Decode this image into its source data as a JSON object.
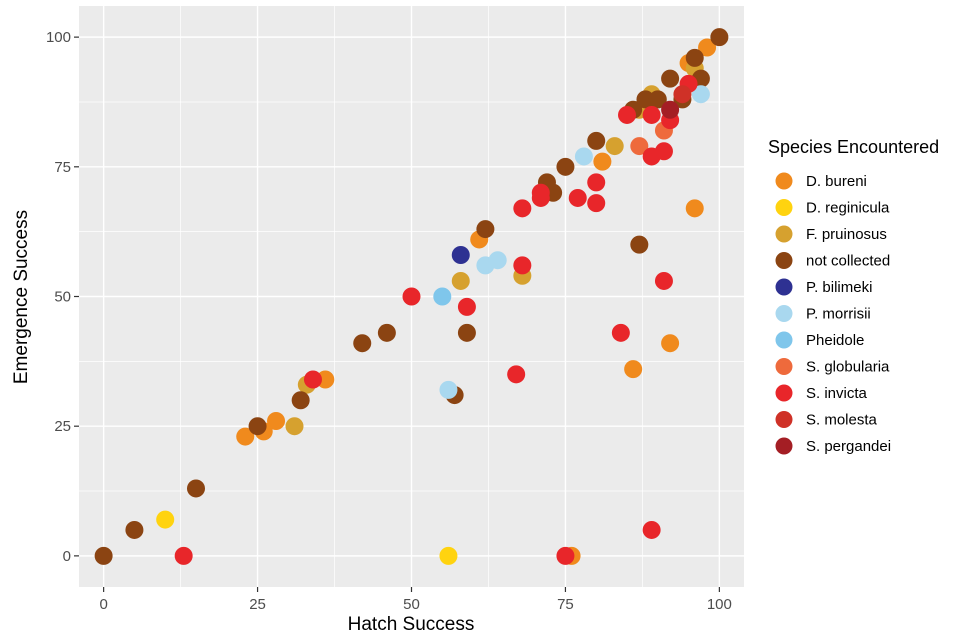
{
  "chart_data": {
    "type": "scatter",
    "xlabel": "Hatch Success",
    "ylabel": "Emergence Success",
    "xlim": [
      -4,
      104
    ],
    "ylim": [
      -6,
      106
    ],
    "xticks": [
      0,
      25,
      50,
      75,
      100
    ],
    "yticks": [
      0,
      25,
      50,
      75,
      100
    ],
    "grid": true,
    "legend_title": "Species Encountered",
    "legend_position": "right",
    "series": [
      {
        "name": "D. bureni",
        "color": "#F08A1D",
        "points": [
          [
            23,
            23
          ],
          [
            26,
            24
          ],
          [
            28,
            26
          ],
          [
            36,
            34
          ],
          [
            61,
            61
          ],
          [
            81,
            76
          ],
          [
            86,
            36
          ],
          [
            92,
            41
          ],
          [
            95,
            95
          ],
          [
            96,
            67
          ],
          [
            98,
            98
          ],
          [
            76,
            0
          ]
        ]
      },
      {
        "name": "D. reginicula",
        "color": "#FFD30F",
        "points": [
          [
            10,
            7
          ],
          [
            56,
            0
          ]
        ]
      },
      {
        "name": "F. pruinosus",
        "color": "#D6A12F",
        "points": [
          [
            31,
            25
          ],
          [
            33,
            33
          ],
          [
            58,
            53
          ],
          [
            68,
            54
          ],
          [
            83,
            79
          ],
          [
            87,
            86
          ],
          [
            89,
            89
          ],
          [
            96,
            94
          ]
        ]
      },
      {
        "name": "not collected",
        "color": "#8B4412",
        "points": [
          [
            0,
            0
          ],
          [
            5,
            5
          ],
          [
            15,
            13
          ],
          [
            25,
            25
          ],
          [
            32,
            30
          ],
          [
            42,
            41
          ],
          [
            46,
            43
          ],
          [
            57,
            31
          ],
          [
            59,
            43
          ],
          [
            62,
            63
          ],
          [
            72,
            72
          ],
          [
            73,
            70
          ],
          [
            75,
            75
          ],
          [
            80,
            80
          ],
          [
            86,
            86
          ],
          [
            87,
            60
          ],
          [
            88,
            88
          ],
          [
            90,
            88
          ],
          [
            92,
            92
          ],
          [
            94,
            88
          ],
          [
            96,
            96
          ],
          [
            97,
            92
          ],
          [
            100,
            100
          ]
        ]
      },
      {
        "name": "P. bilimeki",
        "color": "#2E3192",
        "points": [
          [
            58,
            58
          ]
        ]
      },
      {
        "name": "P. morrisii",
        "color": "#A9D8EF",
        "points": [
          [
            56,
            32
          ],
          [
            62,
            56
          ],
          [
            64,
            57
          ],
          [
            78,
            77
          ],
          [
            97,
            89
          ]
        ]
      },
      {
        "name": "Pheidole",
        "color": "#7FC6EB",
        "points": [
          [
            55,
            50
          ]
        ]
      },
      {
        "name": "S. globularia",
        "color": "#EE6A3C",
        "points": [
          [
            87,
            79
          ],
          [
            91,
            82
          ]
        ]
      },
      {
        "name": "S. invicta",
        "color": "#E8262A",
        "points": [
          [
            13,
            0
          ],
          [
            34,
            34
          ],
          [
            50,
            50
          ],
          [
            59,
            48
          ],
          [
            67,
            35
          ],
          [
            68,
            56
          ],
          [
            68,
            67
          ],
          [
            71,
            69
          ],
          [
            71,
            70
          ],
          [
            77,
            69
          ],
          [
            80,
            68
          ],
          [
            80,
            72
          ],
          [
            84,
            43
          ],
          [
            85,
            85
          ],
          [
            89,
            77
          ],
          [
            89,
            85
          ],
          [
            91,
            53
          ],
          [
            91,
            78
          ],
          [
            92,
            84
          ],
          [
            95,
            91
          ],
          [
            89,
            5
          ],
          [
            75,
            0
          ]
        ]
      },
      {
        "name": "S. molesta",
        "color": "#CF3127",
        "points": [
          [
            94,
            89
          ]
        ]
      },
      {
        "name": "S. pergandei",
        "color": "#A41E24",
        "points": [
          [
            92,
            86
          ]
        ]
      }
    ]
  }
}
